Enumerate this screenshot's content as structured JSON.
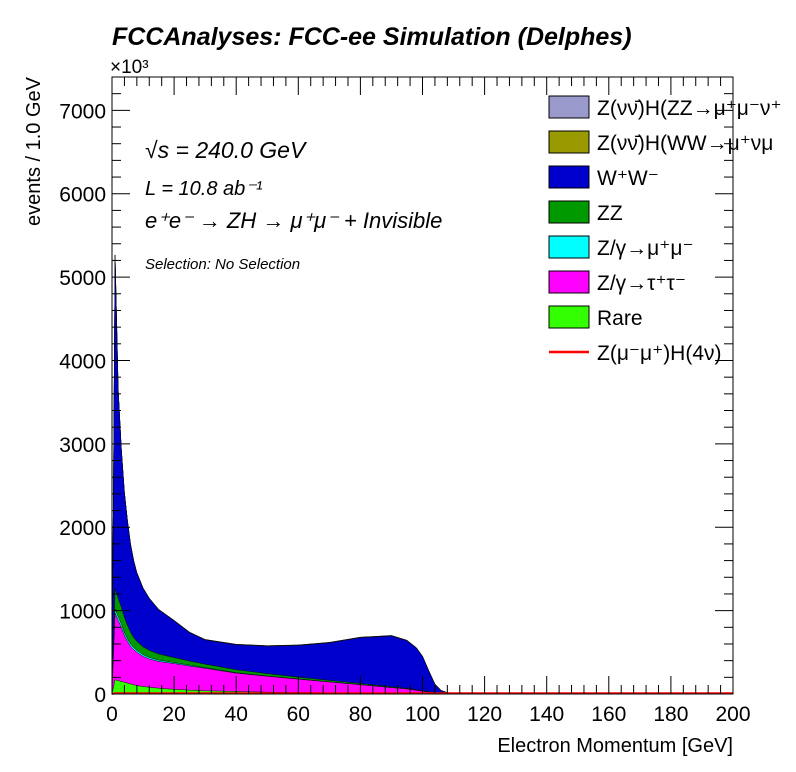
{
  "chart_data": {
    "type": "area",
    "title": "FCCAnalyses: FCC-ee Simulation (Delphes)",
    "xlabel": "Electron Momentum [GeV]",
    "ylabel": "events / 1.0 GeV",
    "y_multiplier": "×10³",
    "xlim": [
      0,
      200
    ],
    "ylim": [
      0,
      7400
    ],
    "xticks": [
      "0",
      "20",
      "40",
      "60",
      "80",
      "100",
      "120",
      "140",
      "160",
      "180",
      "200"
    ],
    "yticks": [
      "0",
      "1000",
      "2000",
      "3000",
      "4000",
      "5000",
      "6000",
      "7000"
    ],
    "stacked": true,
    "bin_width": 1.0,
    "grid": false,
    "legend_position": "top-right",
    "annotations": {
      "energy": "√s = 240.0 GeV",
      "lumi": "L = 10.8 ab⁻¹",
      "process": "e⁺e⁻ → ZH → μ⁺μ⁻ + Invisible",
      "selection": "Selection: No Selection"
    },
    "legend": [
      {
        "label": "Z(νν̄)H(ZZ→μ⁺μ⁻ν⁺",
        "style": "fill",
        "color": "#9999cc"
      },
      {
        "label": "Z(νν̄)H(WW→μ⁺νμ",
        "style": "fill",
        "color": "#999900"
      },
      {
        "label": "W⁺W⁻",
        "style": "fill",
        "color": "#0000cc"
      },
      {
        "label": "ZZ",
        "style": "fill",
        "color": "#009900"
      },
      {
        "label": "Z/γ→μ⁺μ⁻",
        "style": "fill",
        "color": "#00ffff"
      },
      {
        "label": "Z/γ→τ⁺τ⁻",
        "style": "fill",
        "color": "#ff00ff"
      },
      {
        "label": "Rare",
        "style": "fill",
        "color": "#33ff00"
      },
      {
        "label": "Z(μ⁻μ⁺)H(4ν)",
        "style": "line",
        "color": "#ff0000"
      }
    ],
    "x": [
      0,
      1,
      2,
      3,
      4,
      5,
      6,
      7,
      8,
      10,
      12,
      15,
      20,
      25,
      30,
      40,
      50,
      60,
      70,
      80,
      85,
      90,
      95,
      98,
      100,
      102,
      104,
      106,
      108,
      110,
      120,
      150,
      200
    ],
    "series": [
      {
        "name": "Rare",
        "color": "#33ff00",
        "values": [
          0,
          170,
          160,
          150,
          140,
          130,
          120,
          110,
          100,
          90,
          80,
          70,
          55,
          45,
          38,
          30,
          22,
          18,
          14,
          10,
          8,
          6,
          5,
          4,
          3,
          2,
          1,
          0,
          0,
          0,
          0,
          0,
          0
        ]
      },
      {
        "name": "Z/γ→τ⁺τ⁻",
        "color": "#ff00ff",
        "values": [
          0,
          800,
          720,
          650,
          560,
          500,
          450,
          420,
          400,
          360,
          340,
          320,
          310,
          290,
          270,
          220,
          190,
          160,
          130,
          100,
          85,
          70,
          55,
          40,
          30,
          20,
          10,
          5,
          0,
          0,
          0,
          0,
          0
        ]
      },
      {
        "name": "Z/γ→μ⁺μ⁻",
        "color": "#00ffff",
        "values": [
          0,
          50,
          45,
          40,
          35,
          30,
          28,
          25,
          22,
          20,
          18,
          15,
          12,
          10,
          8,
          5,
          3,
          2,
          1,
          1,
          0,
          0,
          0,
          0,
          0,
          0,
          0,
          0,
          0,
          0,
          0,
          0,
          0
        ]
      },
      {
        "name": "ZZ",
        "color": "#009900",
        "values": [
          0,
          240,
          220,
          200,
          180,
          160,
          140,
          120,
          110,
          95,
          85,
          75,
          60,
          50,
          42,
          35,
          28,
          22,
          18,
          14,
          12,
          10,
          8,
          6,
          5,
          4,
          3,
          2,
          1,
          0,
          0,
          0,
          0
        ]
      },
      {
        "name": "W⁺W⁻",
        "color": "#0000cc",
        "values": [
          0,
          4000,
          2500,
          1900,
          1500,
          1250,
          1050,
          920,
          820,
          700,
          620,
          530,
          440,
          340,
          290,
          300,
          330,
          380,
          450,
          550,
          580,
          610,
          570,
          500,
          410,
          250,
          100,
          30,
          10,
          5,
          5,
          5,
          5
        ]
      },
      {
        "name": "Z(νν̄)H(WW→μ⁺νμ",
        "color": "#999900",
        "values": [
          0,
          5,
          5,
          5,
          5,
          5,
          5,
          5,
          5,
          5,
          5,
          5,
          5,
          5,
          5,
          5,
          5,
          5,
          5,
          5,
          5,
          5,
          5,
          5,
          5,
          5,
          5,
          5,
          5,
          5,
          5,
          5,
          5
        ]
      },
      {
        "name": "Z(νν̄)H(ZZ→μ⁺μ⁻ν⁺",
        "color": "#9999cc",
        "values": [
          0,
          2,
          2,
          2,
          2,
          2,
          2,
          2,
          2,
          2,
          2,
          2,
          2,
          2,
          2,
          2,
          2,
          2,
          2,
          2,
          2,
          2,
          2,
          2,
          2,
          2,
          2,
          2,
          2,
          2,
          2,
          2,
          2
        ]
      }
    ],
    "signal": {
      "name": "Z(μ⁻μ⁺)H(4ν)",
      "color": "#ff0000",
      "values": [
        0,
        10,
        10,
        10,
        10,
        10,
        10,
        10,
        10,
        10,
        10,
        10,
        10,
        10,
        10,
        10,
        10,
        10,
        10,
        10,
        10,
        10,
        10,
        10,
        10,
        10,
        10,
        10,
        10,
        10,
        10,
        10,
        10
      ]
    }
  }
}
